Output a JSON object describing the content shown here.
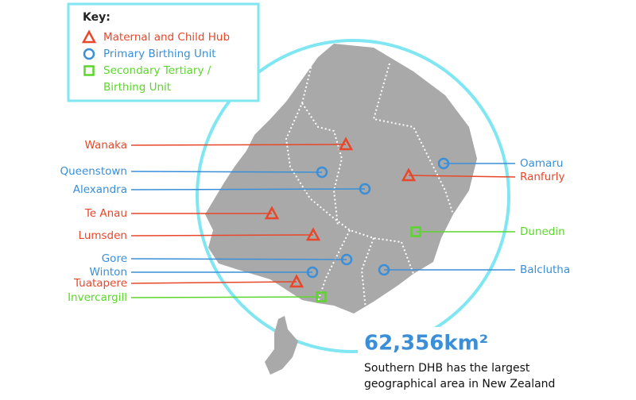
{
  "key": {
    "title": "Key:",
    "items": [
      {
        "label": [
          "Maternal and Child Hub"
        ],
        "places": [
          "Wanaka",
          "Te Anau",
          "Lumsden",
          "Tuatapere",
          "Ranfurly"
        ]
      },
      {
        "label": [
          "Primary Birthing Unit"
        ],
        "places": [
          "Queenstown",
          "Alexandra",
          "Gore",
          "Winton",
          "Oamaru",
          "Balclutha"
        ]
      },
      {
        "label": [
          "Secondary Tertiary /",
          "Birthing Unit"
        ],
        "places": [
          "Invercargill",
          "Dunedin"
        ]
      }
    ]
  },
  "stat": {
    "value": "62,356km²",
    "description": [
      "Southern DHB has the largest",
      "geographical area in New Zealand"
    ]
  }
}
